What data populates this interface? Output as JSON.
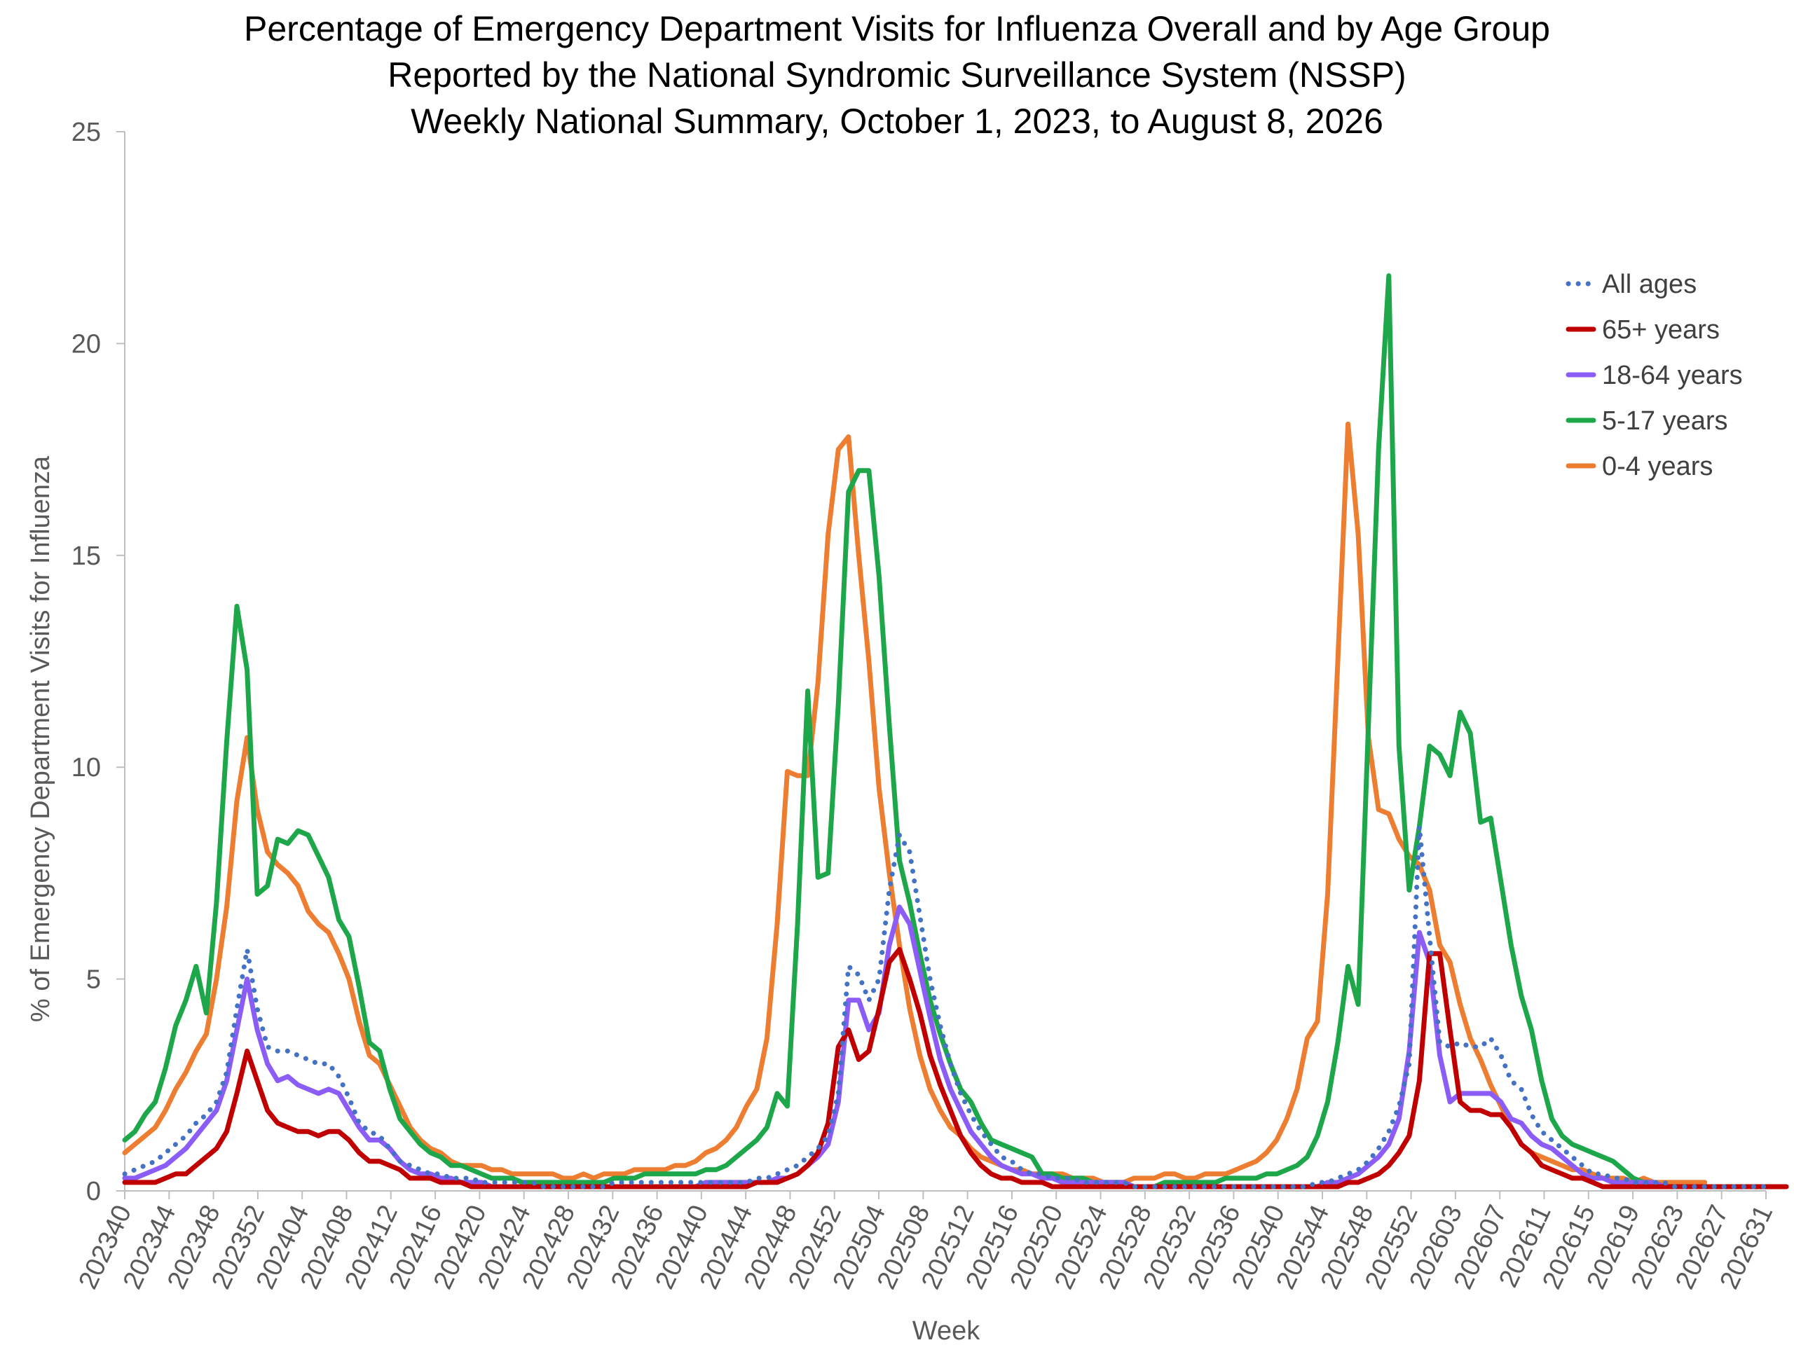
{
  "chart_data": {
    "type": "line",
    "title_lines": [
      "Percentage of Emergency Department Visits for Influenza Overall and by Age Group",
      "Reported by the National Syndromic Surveillance System (NSSP)",
      "Weekly National Summary, October 1, 2023, to August 8, 2026"
    ],
    "xlabel": "Week",
    "ylabel": "% of Emergency Department Visits for Influenza",
    "ylim": [
      0,
      25
    ],
    "yticks": [
      "0",
      "5",
      "10",
      "15",
      "20",
      "25"
    ],
    "xtick_labels": [
      "202340",
      "202344",
      "202348",
      "202352",
      "202404",
      "202408",
      "202412",
      "202416",
      "202420",
      "202424",
      "202428",
      "202432",
      "202436",
      "202440",
      "202444",
      "202448",
      "202452",
      "202504",
      "202508",
      "202512",
      "202516",
      "202520",
      "202524",
      "202528",
      "202532",
      "202536",
      "202540",
      "202544",
      "202548",
      "202552",
      "202603",
      "202607",
      "202611",
      "202615",
      "202619",
      "202623",
      "202627",
      "202631"
    ],
    "grid": false,
    "legend_position": "top-right",
    "series": [
      {
        "name": "All ages",
        "color": "#4472C4",
        "dash": "dotted",
        "values": [
          0.4,
          0.5,
          0.6,
          0.7,
          0.9,
          1.1,
          1.3,
          1.6,
          1.8,
          2.1,
          2.8,
          4.3,
          5.7,
          4.3,
          3.4,
          3.3,
          3.3,
          3.2,
          3.1,
          3.0,
          3.0,
          2.7,
          2.2,
          1.6,
          1.4,
          1.3,
          1.0,
          0.7,
          0.6,
          0.5,
          0.4,
          0.4,
          0.3,
          0.3,
          0.3,
          0.2,
          0.2,
          0.2,
          0.2,
          0.2,
          0.2,
          0.1,
          0.1,
          0.1,
          0.1,
          0.1,
          0.1,
          0.1,
          0.2,
          0.2,
          0.2,
          0.2,
          0.2,
          0.2,
          0.2,
          0.2,
          0.2,
          0.2,
          0.2,
          0.2,
          0.2,
          0.2,
          0.3,
          0.3,
          0.4,
          0.5,
          0.6,
          0.8,
          1.0,
          1.3,
          2.3,
          5.3,
          5.1,
          4.5,
          5.0,
          7.1,
          8.4,
          8.0,
          6.5,
          5.0,
          3.9,
          3.0,
          2.3,
          1.8,
          1.4,
          1.1,
          0.8,
          0.7,
          0.5,
          0.4,
          0.4,
          0.3,
          0.3,
          0.3,
          0.2,
          0.2,
          0.2,
          0.2,
          0.2,
          0.1,
          0.1,
          0.1,
          0.1,
          0.1,
          0.1,
          0.1,
          0.1,
          0.1,
          0.1,
          0.1,
          0.1,
          0.1,
          0.1,
          0.1,
          0.1,
          0.1,
          0.1,
          0.2,
          0.2,
          0.3,
          0.4,
          0.5,
          0.7,
          1.0,
          1.4,
          2.0,
          3.0,
          8.6,
          6.0,
          3.5,
          3.4,
          3.5,
          3.4,
          3.4,
          3.6,
          3.2,
          2.6,
          2.4,
          1.8,
          1.4,
          1.2,
          1.0,
          0.8,
          0.6,
          0.4,
          0.4,
          0.3,
          0.3,
          0.2,
          0.2,
          0.2,
          0.2,
          0.1,
          0.1,
          0.1,
          0.1,
          0.1,
          0.1,
          0.1,
          0.1,
          0.1,
          0.1
        ]
      },
      {
        "name": "65+ years",
        "color": "#C00000",
        "dash": "solid",
        "values": [
          0.2,
          0.2,
          0.2,
          0.2,
          0.3,
          0.4,
          0.4,
          0.6,
          0.8,
          1.0,
          1.4,
          2.3,
          3.3,
          2.6,
          1.9,
          1.6,
          1.5,
          1.4,
          1.4,
          1.3,
          1.4,
          1.4,
          1.2,
          0.9,
          0.7,
          0.7,
          0.6,
          0.5,
          0.3,
          0.3,
          0.3,
          0.2,
          0.2,
          0.2,
          0.1,
          0.1,
          0.1,
          0.1,
          0.1,
          0.1,
          0.1,
          0.1,
          0.1,
          0.1,
          0.1,
          0.1,
          0.1,
          0.1,
          0.1,
          0.1,
          0.1,
          0.1,
          0.1,
          0.1,
          0.1,
          0.1,
          0.1,
          0.1,
          0.1,
          0.1,
          0.1,
          0.1,
          0.2,
          0.2,
          0.2,
          0.3,
          0.4,
          0.6,
          0.9,
          1.6,
          3.4,
          3.8,
          3.1,
          3.3,
          4.3,
          5.4,
          5.7,
          5.0,
          4.2,
          3.2,
          2.5,
          1.9,
          1.3,
          0.9,
          0.6,
          0.4,
          0.3,
          0.3,
          0.2,
          0.2,
          0.2,
          0.1,
          0.1,
          0.1,
          0.1,
          0.1,
          0.1,
          0.1,
          0.1,
          0.1,
          0.1,
          0.1,
          0.1,
          0.1,
          0.1,
          0.1,
          0.1,
          0.1,
          0.1,
          0.1,
          0.1,
          0.1,
          0.1,
          0.1,
          0.1,
          0.1,
          0.1,
          0.1,
          0.1,
          0.1,
          0.2,
          0.2,
          0.3,
          0.4,
          0.6,
          0.9,
          1.3,
          2.6,
          5.6,
          5.6,
          3.8,
          2.1,
          1.9,
          1.9,
          1.8,
          1.8,
          1.5,
          1.1,
          0.9,
          0.6,
          0.5,
          0.4,
          0.3,
          0.3,
          0.2,
          0.1,
          0.1,
          0.1,
          0.1,
          0.1,
          0.1,
          0.1,
          0.1,
          0.1,
          0.1,
          0.1,
          0.1,
          0.1,
          0.1,
          0.1,
          0.1,
          0.1,
          0.1,
          0.1
        ]
      },
      {
        "name": "18-64 years",
        "color": "#8B5CF6",
        "dash": "solid",
        "values": [
          0.3,
          0.3,
          0.4,
          0.5,
          0.6,
          0.8,
          1.0,
          1.3,
          1.6,
          1.9,
          2.6,
          3.8,
          5.0,
          3.8,
          3.0,
          2.6,
          2.7,
          2.5,
          2.4,
          2.3,
          2.4,
          2.3,
          1.9,
          1.5,
          1.2,
          1.2,
          1.0,
          0.7,
          0.5,
          0.4,
          0.4,
          0.3,
          0.3,
          0.2,
          0.2,
          0.2,
          0.1,
          0.1,
          0.1,
          0.1,
          0.1,
          0.1,
          0.1,
          0.1,
          0.1,
          0.1,
          0.1,
          0.1,
          0.1,
          0.1,
          0.1,
          0.1,
          0.1,
          0.1,
          0.1,
          0.1,
          0.1,
          0.2,
          0.2,
          0.2,
          0.2,
          0.2,
          0.2,
          0.2,
          0.3,
          0.3,
          0.4,
          0.6,
          0.8,
          1.1,
          2.1,
          4.5,
          4.5,
          3.8,
          4.2,
          5.8,
          6.7,
          6.3,
          5.2,
          4.1,
          3.1,
          2.4,
          1.9,
          1.4,
          1.1,
          0.8,
          0.6,
          0.5,
          0.4,
          0.4,
          0.3,
          0.3,
          0.2,
          0.2,
          0.2,
          0.2,
          0.2,
          0.2,
          0.2,
          0.1,
          0.1,
          0.1,
          0.1,
          0.1,
          0.1,
          0.1,
          0.1,
          0.1,
          0.1,
          0.1,
          0.1,
          0.1,
          0.1,
          0.1,
          0.1,
          0.1,
          0.1,
          0.1,
          0.2,
          0.2,
          0.3,
          0.4,
          0.6,
          0.8,
          1.1,
          1.7,
          3.3,
          6.1,
          5.4,
          3.2,
          2.1,
          2.3,
          2.3,
          2.3,
          2.3,
          2.1,
          1.7,
          1.6,
          1.3,
          1.1,
          1.0,
          0.8,
          0.6,
          0.4,
          0.3,
          0.3,
          0.2,
          0.2,
          0.2,
          0.2,
          0.2,
          0.1,
          0.1,
          0.1,
          0.1,
          0.1,
          0.1,
          0.1,
          0.1,
          0.1,
          0.1
        ]
      },
      {
        "name": "5-17 years",
        "color": "#1EA74A",
        "dash": "solid",
        "values": [
          1.2,
          1.4,
          1.8,
          2.1,
          2.9,
          3.9,
          4.5,
          5.3,
          4.2,
          6.8,
          10.6,
          13.8,
          12.3,
          7.0,
          7.2,
          8.3,
          8.2,
          8.5,
          8.4,
          7.9,
          7.4,
          6.4,
          6.0,
          4.8,
          3.5,
          3.3,
          2.4,
          1.7,
          1.4,
          1.1,
          0.9,
          0.8,
          0.6,
          0.6,
          0.5,
          0.4,
          0.3,
          0.3,
          0.3,
          0.2,
          0.2,
          0.2,
          0.2,
          0.2,
          0.2,
          0.2,
          0.2,
          0.2,
          0.3,
          0.3,
          0.3,
          0.4,
          0.4,
          0.4,
          0.4,
          0.4,
          0.4,
          0.5,
          0.5,
          0.6,
          0.8,
          1.0,
          1.2,
          1.5,
          2.3,
          2.0,
          6.3,
          11.8,
          7.4,
          7.5,
          11.5,
          16.5,
          17.0,
          17.0,
          14.5,
          11.0,
          7.8,
          6.8,
          5.6,
          4.5,
          3.7,
          3.0,
          2.4,
          2.1,
          1.6,
          1.2,
          1.1,
          1.0,
          0.9,
          0.8,
          0.4,
          0.4,
          0.3,
          0.3,
          0.3,
          0.2,
          0.2,
          0.2,
          0.2,
          0.1,
          0.1,
          0.1,
          0.2,
          0.2,
          0.2,
          0.2,
          0.2,
          0.2,
          0.3,
          0.3,
          0.3,
          0.3,
          0.4,
          0.4,
          0.5,
          0.6,
          0.8,
          1.3,
          2.1,
          3.5,
          5.3,
          4.4,
          11.0,
          17.5,
          21.6,
          10.5,
          7.1,
          8.6,
          10.5,
          10.3,
          9.8,
          11.3,
          10.8,
          8.7,
          8.8,
          7.3,
          5.8,
          4.6,
          3.8,
          2.6,
          1.7,
          1.3,
          1.1,
          1.0,
          0.9,
          0.8,
          0.7,
          0.5,
          0.3,
          0.2,
          0.2,
          0.1,
          0.1,
          0.1,
          0.1,
          0.1,
          0.1,
          0.1,
          0.1
        ]
      },
      {
        "name": "0-4 years",
        "color": "#ED7D31",
        "dash": "solid",
        "values": [
          0.9,
          1.1,
          1.3,
          1.5,
          1.9,
          2.4,
          2.8,
          3.3,
          3.7,
          5.0,
          6.7,
          9.2,
          10.7,
          9.0,
          8.0,
          7.7,
          7.5,
          7.2,
          6.6,
          6.3,
          6.1,
          5.6,
          5.0,
          4.0,
          3.2,
          3.0,
          2.5,
          2.0,
          1.5,
          1.2,
          1.0,
          0.9,
          0.7,
          0.6,
          0.6,
          0.6,
          0.5,
          0.5,
          0.4,
          0.4,
          0.4,
          0.4,
          0.4,
          0.3,
          0.3,
          0.4,
          0.3,
          0.4,
          0.4,
          0.4,
          0.5,
          0.5,
          0.5,
          0.5,
          0.6,
          0.6,
          0.7,
          0.9,
          1.0,
          1.2,
          1.5,
          2.0,
          2.4,
          3.6,
          6.3,
          9.9,
          9.8,
          9.8,
          12.0,
          15.5,
          17.5,
          17.8,
          15.0,
          12.5,
          9.5,
          7.5,
          5.8,
          4.3,
          3.2,
          2.4,
          1.9,
          1.5,
          1.3,
          1.0,
          0.8,
          0.7,
          0.6,
          0.5,
          0.5,
          0.4,
          0.4,
          0.4,
          0.4,
          0.3,
          0.3,
          0.3,
          0.2,
          0.2,
          0.2,
          0.3,
          0.3,
          0.3,
          0.4,
          0.4,
          0.3,
          0.3,
          0.4,
          0.4,
          0.4,
          0.5,
          0.6,
          0.7,
          0.9,
          1.2,
          1.7,
          2.4,
          3.6,
          4.0,
          7.0,
          12.5,
          18.1,
          15.5,
          10.7,
          9.0,
          8.9,
          8.3,
          7.9,
          7.7,
          7.1,
          5.8,
          5.4,
          4.4,
          3.6,
          3.1,
          2.5,
          2.0,
          1.5,
          1.1,
          0.9,
          0.8,
          0.7,
          0.6,
          0.5,
          0.5,
          0.4,
          0.3,
          0.3,
          0.3,
          0.2,
          0.3,
          0.2,
          0.2,
          0.2,
          0.2,
          0.2,
          0.2
        ]
      }
    ]
  }
}
